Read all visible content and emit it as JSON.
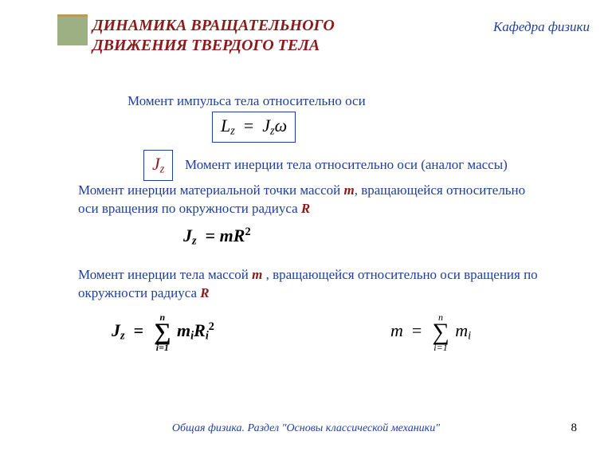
{
  "colors": {
    "title": "#8b1a1a",
    "body": "#1f3f9c",
    "accent_box": "#9cb084",
    "accent_stripe": "#b89a5a",
    "background": "#ffffff"
  },
  "title": {
    "line1": "ДИНАМИКА  ВРАЩАТЕЛЬНОГО",
    "line2": "ДВИЖЕНИЯ  ТВЕРДОГО  ТЕЛА",
    "fontsize": 20
  },
  "department": "Кафедра физики",
  "texts": {
    "t1": "Момент импульса тела относительно оси",
    "t2": "Момент инерции тела относительно оси (аналог массы)",
    "t3_pre": "Момент инерции материальной точки  массой ",
    "t3_m": "m",
    "t3_mid": ",  вращающейся относительно оси вращения  по окружности  радиуса ",
    "t3_R": "R",
    "t4_pre": "Момент инерции тела массой ",
    "t4_m": "m",
    "t4_mid": " ,  вращающейся   относительно оси вращения  по окружности  радиуса ",
    "t4_R": "R"
  },
  "formulas": {
    "f1": {
      "lhs_var": "L",
      "lhs_sub": "z",
      "rhs_var1": "J",
      "rhs_sub1": "z",
      "rhs_var2": "ω",
      "boxed": true,
      "fontsize": 22
    },
    "f_small": {
      "var": "J",
      "sub": "z",
      "boxed": true,
      "fontsize": 22,
      "color": "#8b1a1a"
    },
    "f2": {
      "lhs_var": "J",
      "lhs_sub": "z",
      "rhs_m": "m",
      "rhs_R": "R",
      "rhs_exp": "2",
      "boxed": false,
      "fontsize": 22,
      "bold": true
    },
    "f3": {
      "lhs_var": "J",
      "lhs_sub": "z",
      "sum_top": "n",
      "sum_bot": "i=1",
      "term_m": "m",
      "term_m_sub": "i",
      "term_R": "R",
      "term_R_sub": "i",
      "term_R_exp": "2",
      "fontsize": 22,
      "bold": true
    },
    "f4": {
      "lhs_var": "m",
      "sum_top": "n",
      "sum_bot": "i=1",
      "term": "m",
      "term_sub": "i",
      "fontsize": 22
    }
  },
  "footer": "Общая физика. Раздел \"Основы классической механики\"",
  "page_number": "8",
  "typography": {
    "body_fontsize": 17,
    "footer_fontsize": 14
  }
}
